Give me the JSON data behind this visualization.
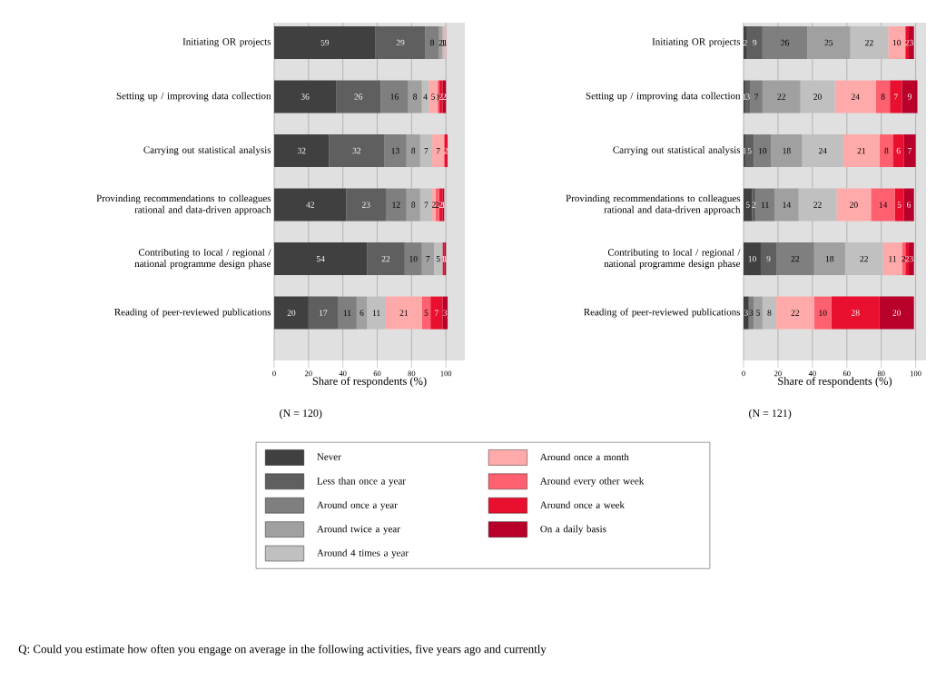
{
  "chart_data": [
    {
      "type": "bar",
      "orientation": "horizontal",
      "stacked": true,
      "data_labels": true,
      "grid": "x",
      "legend": "bottom",
      "categories": [
        "Initiating OR projects",
        "Setting up / improving data collection",
        "Carrying out statistical analysis",
        "Provinding recommendations to colleagues rational and data-driven approach",
        "Contributing to local / regional / national programme design phase",
        "Reading of peer-reviewed publications"
      ],
      "xlabel": "Share of respondents (%)",
      "xlim": [
        0,
        111
      ],
      "xticks": [
        0,
        20,
        40,
        60,
        80,
        100
      ],
      "annotations": [
        "(N = 120)",
        "Q: Could you estimate how often you engage on average in the following activities, five years ago and currently"
      ],
      "series": [
        {
          "name": "Never",
          "color": "#404040",
          "values": [
            59,
            36,
            32,
            42,
            54,
            20
          ]
        },
        {
          "name": "Less than once a year",
          "color": "#5f5f5f",
          "values": [
            29,
            26,
            32,
            23,
            22,
            17
          ]
        },
        {
          "name": "Around once a year",
          "color": "#7f7f7f",
          "values": [
            8,
            16,
            13,
            12,
            10,
            11
          ]
        },
        {
          "name": "Around twice a year",
          "color": "#a0a0a0",
          "values": [
            2,
            8,
            8,
            8,
            7,
            6
          ]
        },
        {
          "name": "Around 4 times a year",
          "color": "#c0c0c0",
          "values": [
            1,
            4,
            7,
            7,
            5,
            11
          ]
        },
        {
          "name": "Around once a month",
          "color": "#ffaaaa",
          "values": [
            1,
            5,
            7,
            2,
            null,
            21
          ]
        },
        {
          "name": "Around every other week",
          "color": "#ff6070",
          "values": [
            null,
            1,
            null,
            2,
            null,
            5
          ]
        },
        {
          "name": "Around once a week",
          "color": "#e8102e",
          "values": [
            null,
            2,
            2,
            2,
            1,
            7
          ]
        },
        {
          "name": "On a daily basis",
          "color": "#b8002a",
          "values": [
            null,
            2,
            null,
            1,
            1,
            3
          ]
        }
      ]
    },
    {
      "type": "bar",
      "orientation": "horizontal",
      "stacked": true,
      "data_labels": true,
      "grid": "x",
      "categories": [
        "Initiating OR projects",
        "Setting up / improving data collection",
        "Carrying out statistical analysis",
        "Provinding recommendations to colleagues rational and data-driven approach",
        "Contributing to local / regional / national programme design phase",
        "Reading of peer-reviewed publications"
      ],
      "xlabel": "Share of respondents (%)",
      "xlim": [
        0,
        106
      ],
      "xticks": [
        0,
        20,
        40,
        60,
        80,
        100
      ],
      "annotations": [
        "(N = 121)"
      ],
      "series": [
        {
          "color": "#404040",
          "values": [
            2,
            1,
            1,
            5,
            10,
            3
          ]
        },
        {
          "color": "#5f5f5f",
          "values": [
            9,
            3,
            5,
            2,
            9,
            null
          ]
        },
        {
          "color": "#7f7f7f",
          "values": [
            26,
            7,
            10,
            11,
            22,
            3
          ]
        },
        {
          "color": "#a0a0a0",
          "values": [
            25,
            22,
            18,
            14,
            18,
            5
          ]
        },
        {
          "color": "#c0c0c0",
          "values": [
            22,
            20,
            24,
            22,
            22,
            8
          ]
        },
        {
          "color": "#ffaaaa",
          "values": [
            10,
            24,
            21,
            20,
            11,
            22
          ]
        },
        {
          "color": "#ff6070",
          "values": [
            null,
            8,
            8,
            14,
            2,
            10
          ]
        },
        {
          "color": "#e8102e",
          "values": [
            2,
            7,
            6,
            5,
            2,
            28
          ]
        },
        {
          "color": "#b8002a",
          "values": [
            3,
            9,
            7,
            6,
            3,
            20
          ]
        }
      ]
    }
  ]
}
